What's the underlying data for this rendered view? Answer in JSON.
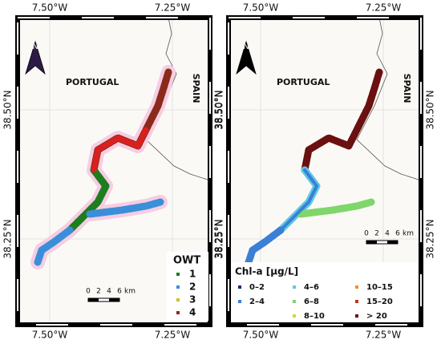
{
  "maps": [
    {
      "lon_labels": [
        "7.50°W",
        "7.25°W"
      ],
      "lat_labels": [
        "38.50°N",
        "38.25°N"
      ],
      "countries": [
        "PORTUGAL",
        "SPAIN"
      ],
      "north": "N",
      "scale": [
        "0",
        "2",
        "4",
        "6",
        "km"
      ],
      "arrow_color": "#2e1a47",
      "legend": {
        "title": "OWT",
        "items": [
          {
            "label": "1",
            "color": "#1e7d1e"
          },
          {
            "label": "2",
            "color": "#3a8fd8"
          },
          {
            "label": "3",
            "color": "#c9c22a"
          },
          {
            "label": "4",
            "color": "#8b2a1a"
          }
        ]
      }
    },
    {
      "lon_labels": [
        "7.50°W",
        "7.25°W"
      ],
      "lat_labels": [
        "38.50°N",
        "38.25°N"
      ],
      "countries": [
        "PORTUGAL",
        "SPAIN"
      ],
      "north": "N",
      "scale": [
        "0",
        "2",
        "4",
        "6",
        "km"
      ],
      "arrow_color": "#000000",
      "legend": {
        "title": "Chl-a [µg/L]",
        "items": [
          {
            "label": "0–2",
            "color": "#1b2a6b"
          },
          {
            "label": "2–4",
            "color": "#3b7fd6"
          },
          {
            "label": "4–6",
            "color": "#5cc8e6"
          },
          {
            "label": "6–8",
            "color": "#7fd66a"
          },
          {
            "label": "8–10",
            "color": "#d8d82a"
          },
          {
            "label": "10–15",
            "color": "#f0902a"
          },
          {
            "label": "15–20",
            "color": "#c8321e"
          },
          {
            "label": "> 20",
            "color": "#6b1010"
          }
        ]
      }
    }
  ]
}
